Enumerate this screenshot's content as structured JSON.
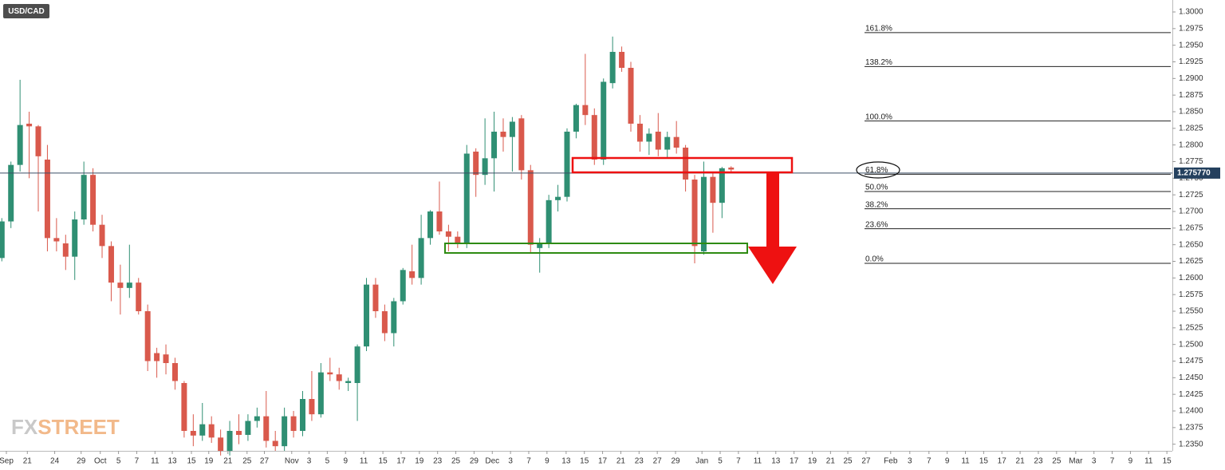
{
  "chart_data": {
    "type": "candlestick",
    "title": "USD/CAD",
    "watermark": [
      "FX",
      "STREET"
    ],
    "up_color": "#2f8f73",
    "down_color": "#d9594c",
    "grid": false,
    "ohlc": {
      "open": [
        1.263,
        1.2685,
        1.277,
        1.2832,
        1.2828,
        1.2778,
        1.266,
        1.2652,
        1.2632,
        1.2688,
        1.2755,
        1.268,
        1.2648,
        1.2593,
        1.2585,
        1.2593,
        1.255,
        1.2487,
        1.2485,
        1.2472,
        1.2442,
        1.237,
        1.2363,
        1.238,
        1.236,
        1.234,
        1.237,
        1.2364,
        1.2385,
        1.2392,
        1.2355,
        1.2347,
        1.2392,
        1.237,
        1.2418,
        1.2395,
        1.2458,
        1.2455,
        1.2442,
        1.2442,
        1.2497,
        1.259,
        1.255,
        1.2517,
        1.2565,
        1.261,
        1.26,
        1.266,
        1.27,
        1.267,
        1.2662,
        1.2652,
        1.279,
        1.2755,
        1.278,
        1.282,
        1.2812,
        1.284,
        1.2762,
        1.2645,
        1.2652,
        1.2717,
        1.2722,
        1.282,
        1.286,
        1.2845,
        1.2778,
        1.2893,
        1.294,
        1.2916,
        1.2832,
        1.2805,
        1.282,
        1.2793,
        1.2812,
        1.2796,
        1.2748,
        1.264,
        1.2752,
        1.2713,
        1.2766
      ],
      "high": [
        1.269,
        1.2775,
        1.2898,
        1.285,
        1.283,
        1.28,
        1.269,
        1.2665,
        1.27,
        1.2775,
        1.2765,
        1.2695,
        1.2655,
        1.262,
        1.265,
        1.26,
        1.256,
        1.2495,
        1.25,
        1.248,
        1.2445,
        1.2395,
        1.2412,
        1.2392,
        1.2372,
        1.2385,
        1.2395,
        1.2395,
        1.2405,
        1.243,
        1.237,
        1.2405,
        1.24,
        1.243,
        1.246,
        1.2472,
        1.248,
        1.2465,
        1.245,
        1.25,
        1.26,
        1.26,
        1.256,
        1.257,
        1.2615,
        1.265,
        1.2695,
        1.2702,
        1.2745,
        1.268,
        1.267,
        1.28,
        1.2795,
        1.284,
        1.285,
        1.284,
        1.2842,
        1.2845,
        1.277,
        1.266,
        1.2725,
        1.274,
        1.2825,
        1.2862,
        1.2937,
        1.2855,
        1.29,
        1.2963,
        1.2948,
        1.2925,
        1.2845,
        1.2825,
        1.2848,
        1.282,
        1.2836,
        1.28,
        1.2755,
        1.2775,
        1.276,
        1.2767,
        1.2768
      ],
      "low": [
        1.2625,
        1.2675,
        1.276,
        1.275,
        1.27,
        1.264,
        1.264,
        1.2612,
        1.2597,
        1.268,
        1.267,
        1.263,
        1.2565,
        1.2545,
        1.257,
        1.2545,
        1.246,
        1.245,
        1.2455,
        1.2432,
        1.236,
        1.2347,
        1.2355,
        1.2352,
        1.2333,
        1.2333,
        1.235,
        1.2355,
        1.2375,
        1.2345,
        1.234,
        1.234,
        1.236,
        1.2362,
        1.2385,
        1.239,
        1.2445,
        1.2432,
        1.243,
        1.2385,
        1.249,
        1.254,
        1.2505,
        1.2497,
        1.256,
        1.259,
        1.259,
        1.265,
        1.2665,
        1.264,
        1.2645,
        1.2645,
        1.2722,
        1.274,
        1.273,
        1.279,
        1.276,
        1.2748,
        1.2637,
        1.2608,
        1.2645,
        1.27,
        1.2715,
        1.281,
        1.283,
        1.277,
        1.277,
        1.2885,
        1.291,
        1.282,
        1.279,
        1.2785,
        1.2783,
        1.278,
        1.2787,
        1.273,
        1.2622,
        1.2635,
        1.2668,
        1.269,
        1.276
      ],
      "close": [
        1.2685,
        1.277,
        1.283,
        1.2828,
        1.2783,
        1.266,
        1.2655,
        1.2632,
        1.2688,
        1.2755,
        1.268,
        1.2648,
        1.2593,
        1.2585,
        1.2593,
        1.255,
        1.2475,
        1.2475,
        1.2472,
        1.2445,
        1.237,
        1.2363,
        1.238,
        1.236,
        1.234,
        1.237,
        1.2364,
        1.2385,
        1.2392,
        1.2355,
        1.2347,
        1.2392,
        1.237,
        1.2418,
        1.2395,
        1.2458,
        1.2455,
        1.2445,
        1.2445,
        1.2497,
        1.259,
        1.255,
        1.2517,
        1.2565,
        1.2612,
        1.26,
        1.266,
        1.27,
        1.267,
        1.2662,
        1.2652,
        1.2787,
        1.2755,
        1.278,
        1.282,
        1.2812,
        1.2835,
        1.2762,
        1.265,
        1.2652,
        1.2717,
        1.2722,
        1.282,
        1.286,
        1.2845,
        1.2778,
        1.2895,
        1.294,
        1.2916,
        1.2832,
        1.2805,
        1.2817,
        1.2793,
        1.2812,
        1.2796,
        1.2748,
        1.2648,
        1.2752,
        1.2713,
        1.2765,
        1.2763
      ]
    },
    "xlim": [
      -0.2,
      128.4
    ],
    "xticks": [
      {
        "value": 0.5,
        "label": "Sep"
      },
      {
        "value": 2.8,
        "label": "21"
      },
      {
        "value": 5.8,
        "label": "24"
      },
      {
        "value": 8.7,
        "label": "29"
      },
      {
        "value": 10.8,
        "label": "Oct"
      },
      {
        "value": 12.8,
        "label": "5"
      },
      {
        "value": 14.8,
        "label": "7"
      },
      {
        "value": 16.8,
        "label": "11"
      },
      {
        "value": 18.7,
        "label": "13"
      },
      {
        "value": 20.8,
        "label": "15"
      },
      {
        "value": 22.7,
        "label": "19"
      },
      {
        "value": 24.8,
        "label": "21"
      },
      {
        "value": 26.9,
        "label": "25"
      },
      {
        "value": 28.8,
        "label": "27"
      },
      {
        "value": 31.8,
        "label": "Nov"
      },
      {
        "value": 33.7,
        "label": "3"
      },
      {
        "value": 35.7,
        "label": "5"
      },
      {
        "value": 37.7,
        "label": "9"
      },
      {
        "value": 39.7,
        "label": "11"
      },
      {
        "value": 41.8,
        "label": "15"
      },
      {
        "value": 43.8,
        "label": "17"
      },
      {
        "value": 45.8,
        "label": "19"
      },
      {
        "value": 47.8,
        "label": "23"
      },
      {
        "value": 49.8,
        "label": "25"
      },
      {
        "value": 51.8,
        "label": "29"
      },
      {
        "value": 53.8,
        "label": "Dec"
      },
      {
        "value": 55.8,
        "label": "3"
      },
      {
        "value": 57.8,
        "label": "7"
      },
      {
        "value": 59.8,
        "label": "9"
      },
      {
        "value": 61.9,
        "label": "13"
      },
      {
        "value": 63.9,
        "label": "15"
      },
      {
        "value": 65.9,
        "label": "17"
      },
      {
        "value": 67.9,
        "label": "21"
      },
      {
        "value": 69.9,
        "label": "23"
      },
      {
        "value": 71.9,
        "label": "27"
      },
      {
        "value": 73.9,
        "label": "29"
      },
      {
        "value": 76.8,
        "label": "Jan"
      },
      {
        "value": 78.8,
        "label": "5"
      },
      {
        "value": 80.8,
        "label": "7"
      },
      {
        "value": 82.9,
        "label": "11"
      },
      {
        "value": 84.9,
        "label": "13"
      },
      {
        "value": 86.9,
        "label": "17"
      },
      {
        "value": 88.9,
        "label": "19"
      },
      {
        "value": 90.9,
        "label": "21"
      },
      {
        "value": 92.8,
        "label": "25"
      },
      {
        "value": 94.8,
        "label": "27"
      },
      {
        "value": 97.5,
        "label": "Feb"
      },
      {
        "value": 99.6,
        "label": "3"
      },
      {
        "value": 101.7,
        "label": "7"
      },
      {
        "value": 103.7,
        "label": "9"
      },
      {
        "value": 105.7,
        "label": "11"
      },
      {
        "value": 107.7,
        "label": "15"
      },
      {
        "value": 109.7,
        "label": "17"
      },
      {
        "value": 111.7,
        "label": "21"
      },
      {
        "value": 113.7,
        "label": "23"
      },
      {
        "value": 115.7,
        "label": "25"
      },
      {
        "value": 117.8,
        "label": "Mar"
      },
      {
        "value": 119.8,
        "label": "3"
      },
      {
        "value": 121.8,
        "label": "7"
      },
      {
        "value": 123.8,
        "label": "9"
      },
      {
        "value": 125.8,
        "label": "11"
      },
      {
        "value": 127.8,
        "label": "15"
      }
    ],
    "ylim": [
      1.234,
      1.3018
    ],
    "yticks": [
      {
        "value": 1.235,
        "label": "1.2350"
      },
      {
        "value": 1.2375,
        "label": "1.2375"
      },
      {
        "value": 1.24,
        "label": "1.2400"
      },
      {
        "value": 1.2425,
        "label": "1.2425"
      },
      {
        "value": 1.245,
        "label": "1.2450"
      },
      {
        "value": 1.2475,
        "label": "1.2475"
      },
      {
        "value": 1.25,
        "label": "1.2500"
      },
      {
        "value": 1.2525,
        "label": "1.2525"
      },
      {
        "value": 1.255,
        "label": "1.2550"
      },
      {
        "value": 1.2575,
        "label": "1.2575"
      },
      {
        "value": 1.26,
        "label": "1.2600"
      },
      {
        "value": 1.2625,
        "label": "1.2625"
      },
      {
        "value": 1.265,
        "label": "1.2650"
      },
      {
        "value": 1.2675,
        "label": "1.2675"
      },
      {
        "value": 1.27,
        "label": "1.2700"
      },
      {
        "value": 1.2725,
        "label": "1.2725"
      },
      {
        "value": 1.275,
        "label": "1.2750"
      },
      {
        "value": 1.2775,
        "label": "1.2775"
      },
      {
        "value": 1.28,
        "label": "1.2800"
      },
      {
        "value": 1.2825,
        "label": "1.2825"
      },
      {
        "value": 1.285,
        "label": "1.2850"
      },
      {
        "value": 1.2875,
        "label": "1.2875"
      },
      {
        "value": 1.29,
        "label": "1.2900"
      },
      {
        "value": 1.2925,
        "label": "1.2925"
      },
      {
        "value": 1.295,
        "label": "1.2950"
      },
      {
        "value": 1.2975,
        "label": "1.2975"
      },
      {
        "value": 1.3,
        "label": "1.3000"
      }
    ],
    "fib_levels": [
      {
        "label": "161.8%",
        "value": 1.2969
      },
      {
        "label": "138.2%",
        "value": 1.2918
      },
      {
        "label": "100.0%",
        "value": 1.2836
      },
      {
        "label": "61.8%",
        "value": 1.2756
      },
      {
        "label": "50.0%",
        "value": 1.273
      },
      {
        "label": "38.2%",
        "value": 1.2704
      },
      {
        "label": "23.6%",
        "value": 1.2674
      },
      {
        "label": "0.0%",
        "value": 1.2622
      }
    ],
    "last_price": {
      "value": 1.27577,
      "label": "1.275770"
    }
  }
}
